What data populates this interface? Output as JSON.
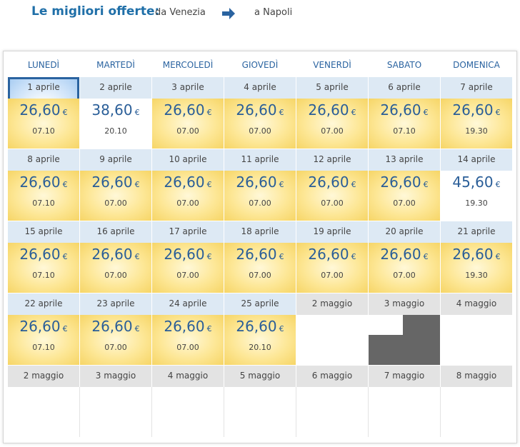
{
  "header": {
    "title": "Le migliori offerte:",
    "from": "da Venezia",
    "to": "a Napoli",
    "arrow_icon": "arrow-right-icon"
  },
  "days": [
    "LUNEDÌ",
    "MARTEDÌ",
    "MERCOLEDÌ",
    "GIOVEDÌ",
    "VENERDÌ",
    "SABATO",
    "DOMENICA"
  ],
  "weeks": [
    [
      {
        "date": "1 aprile",
        "price": "26,60",
        "currency": "€",
        "time": "07.10",
        "type": "selected"
      },
      {
        "date": "2 aprile",
        "price": "38,60",
        "currency": "€",
        "time": "20.10",
        "type": "plain"
      },
      {
        "date": "3 aprile",
        "price": "26,60",
        "currency": "€",
        "time": "07.00",
        "type": "offer"
      },
      {
        "date": "4 aprile",
        "price": "26,60",
        "currency": "€",
        "time": "07.00",
        "type": "offer"
      },
      {
        "date": "5 aprile",
        "price": "26,60",
        "currency": "€",
        "time": "07.00",
        "type": "offer"
      },
      {
        "date": "6 aprile",
        "price": "26,60",
        "currency": "€",
        "time": "07.10",
        "type": "offer"
      },
      {
        "date": "7 aprile",
        "price": "26,60",
        "currency": "€",
        "time": "19.30",
        "type": "offer"
      }
    ],
    [
      {
        "date": "8 aprile",
        "price": "26,60",
        "currency": "€",
        "time": "07.10",
        "type": "offer"
      },
      {
        "date": "9 aprile",
        "price": "26,60",
        "currency": "€",
        "time": "07.00",
        "type": "offer"
      },
      {
        "date": "10 aprile",
        "price": "26,60",
        "currency": "€",
        "time": "07.00",
        "type": "offer"
      },
      {
        "date": "11 aprile",
        "price": "26,60",
        "currency": "€",
        "time": "07.00",
        "type": "offer"
      },
      {
        "date": "12 aprile",
        "price": "26,60",
        "currency": "€",
        "time": "07.00",
        "type": "offer"
      },
      {
        "date": "13 aprile",
        "price": "26,60",
        "currency": "€",
        "time": "07.00",
        "type": "offer"
      },
      {
        "date": "14 aprile",
        "price": "45,60",
        "currency": "€",
        "time": "19.30",
        "type": "plain"
      }
    ],
    [
      {
        "date": "15 aprile",
        "price": "26,60",
        "currency": "€",
        "time": "07.10",
        "type": "offer"
      },
      {
        "date": "16 aprile",
        "price": "26,60",
        "currency": "€",
        "time": "07.00",
        "type": "offer"
      },
      {
        "date": "17 aprile",
        "price": "26,60",
        "currency": "€",
        "time": "07.00",
        "type": "offer"
      },
      {
        "date": "18 aprile",
        "price": "26,60",
        "currency": "€",
        "time": "07.00",
        "type": "offer"
      },
      {
        "date": "19 aprile",
        "price": "26,60",
        "currency": "€",
        "time": "07.00",
        "type": "offer"
      },
      {
        "date": "20 aprile",
        "price": "26,60",
        "currency": "€",
        "time": "07.00",
        "type": "offer"
      },
      {
        "date": "21 aprile",
        "price": "26,60",
        "currency": "€",
        "time": "19.30",
        "type": "offer"
      }
    ],
    [
      {
        "date": "22 aprile",
        "price": "26,60",
        "currency": "€",
        "time": "07.10",
        "type": "offer"
      },
      {
        "date": "23 aprile",
        "price": "26,60",
        "currency": "€",
        "time": "07.00",
        "type": "offer"
      },
      {
        "date": "24 aprile",
        "price": "26,60",
        "currency": "€",
        "time": "07.00",
        "type": "offer"
      },
      {
        "date": "25 aprile",
        "price": "26,60",
        "currency": "€",
        "time": "20.10",
        "type": "offer"
      },
      {
        "date": "2 maggio",
        "type": "may"
      },
      {
        "date": "3 maggio",
        "type": "may-blocked"
      },
      {
        "date": "4 maggio",
        "type": "may"
      }
    ],
    [
      {
        "date": "2 maggio",
        "type": "may"
      },
      {
        "date": "3 maggio",
        "type": "may"
      },
      {
        "date": "4 maggio",
        "type": "may"
      },
      {
        "date": "5 maggio",
        "type": "may"
      },
      {
        "date": "6 maggio",
        "type": "may"
      },
      {
        "date": "7 maggio",
        "type": "may"
      },
      {
        "date": "8 maggio",
        "type": "may"
      }
    ]
  ]
}
